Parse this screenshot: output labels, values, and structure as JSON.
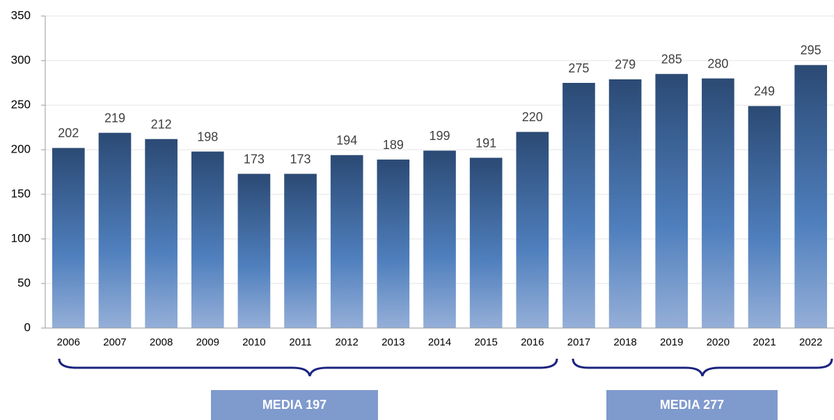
{
  "chart_data": {
    "type": "bar",
    "categories": [
      "2006",
      "2007",
      "2008",
      "2009",
      "2010",
      "2011",
      "2012",
      "2013",
      "2014",
      "2015",
      "2016",
      "2017",
      "2018",
      "2019",
      "2020",
      "2021",
      "2022"
    ],
    "values": [
      202,
      219,
      212,
      198,
      173,
      173,
      194,
      189,
      199,
      191,
      220,
      275,
      279,
      285,
      280,
      249,
      295
    ],
    "color": "#2b4a74",
    "ylim": [
      0,
      350
    ],
    "yticks": [
      0,
      50,
      100,
      150,
      200,
      250,
      300,
      350
    ],
    "grid": true,
    "annotations": [
      "MEDIA 197",
      "MEDIA 277"
    ]
  }
}
